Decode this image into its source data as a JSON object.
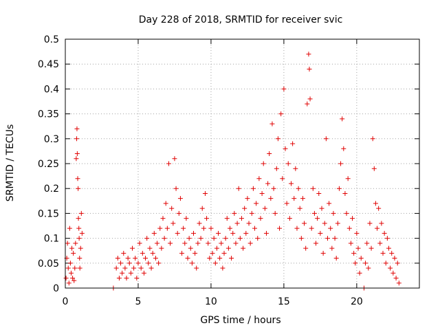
{
  "chart_data": {
    "type": "scatter",
    "title": "Day 228 of 2018, SRMTID for receiver svic",
    "xlabel": "GPS time / hours",
    "ylabel": "SRMTID / TECUs",
    "xlim": [
      0,
      24.3
    ],
    "ylim": [
      0,
      0.5
    ],
    "grid": true,
    "marker": "+",
    "color": "#e00000",
    "xticks": [
      0,
      5,
      10,
      15,
      20
    ],
    "xtick_labels": [
      "0",
      "5",
      "10",
      "15",
      "20"
    ],
    "yticks": [
      0,
      0.05,
      0.1,
      0.15,
      0.2,
      0.25,
      0.3,
      0.35,
      0.4,
      0.45,
      0.5
    ],
    "ytick_labels": [
      "0",
      "0.05",
      "0.1",
      "0.15",
      "0.2",
      "0.25",
      "0.3",
      "0.35",
      "0.4",
      "0.45",
      "0.5"
    ],
    "series": [
      {
        "name": "SRMTID",
        "points": [
          [
            0.05,
            0.02
          ],
          [
            0.1,
            0.06
          ],
          [
            0.15,
            0.09
          ],
          [
            0.2,
            0.04
          ],
          [
            0.25,
            0.01
          ],
          [
            0.3,
            0.12
          ],
          [
            0.35,
            0.05
          ],
          [
            0.4,
            0.03
          ],
          [
            0.45,
            0.08
          ],
          [
            0.5,
            0.02
          ],
          [
            0.55,
            0.07
          ],
          [
            0.6,
            0.015
          ],
          [
            0.65,
            0.04
          ],
          [
            0.7,
            0.09
          ],
          [
            0.75,
            0.26
          ],
          [
            0.78,
            0.3
          ],
          [
            0.8,
            0.32
          ],
          [
            0.82,
            0.27
          ],
          [
            0.85,
            0.22
          ],
          [
            0.88,
            0.2
          ],
          [
            0.9,
            0.14
          ],
          [
            0.93,
            0.12
          ],
          [
            0.95,
            0.1
          ],
          [
            0.98,
            0.06
          ],
          [
            1.0,
            0.04
          ],
          [
            1.05,
            0.08
          ],
          [
            1.1,
            0.15
          ],
          [
            1.15,
            0.11
          ],
          [
            3.3,
            0.0
          ],
          [
            3.5,
            0.04
          ],
          [
            3.6,
            0.06
          ],
          [
            3.7,
            0.02
          ],
          [
            3.8,
            0.05
          ],
          [
            3.9,
            0.03
          ],
          [
            4.0,
            0.07
          ],
          [
            4.1,
            0.04
          ],
          [
            4.2,
            0.02
          ],
          [
            4.3,
            0.06
          ],
          [
            4.4,
            0.05
          ],
          [
            4.5,
            0.03
          ],
          [
            4.6,
            0.08
          ],
          [
            4.7,
            0.04
          ],
          [
            4.8,
            0.06
          ],
          [
            4.9,
            0.02
          ],
          [
            5.0,
            0.05
          ],
          [
            5.1,
            0.09
          ],
          [
            5.2,
            0.04
          ],
          [
            5.3,
            0.07
          ],
          [
            5.4,
            0.03
          ],
          [
            5.5,
            0.06
          ],
          [
            5.6,
            0.1
          ],
          [
            5.7,
            0.05
          ],
          [
            5.8,
            0.08
          ],
          [
            5.9,
            0.04
          ],
          [
            6.0,
            0.07
          ],
          [
            6.1,
            0.11
          ],
          [
            6.2,
            0.06
          ],
          [
            6.3,
            0.09
          ],
          [
            6.4,
            0.05
          ],
          [
            6.5,
            0.12
          ],
          [
            6.6,
            0.08
          ],
          [
            6.7,
            0.14
          ],
          [
            6.8,
            0.1
          ],
          [
            6.9,
            0.17
          ],
          [
            7.0,
            0.12
          ],
          [
            7.1,
            0.25
          ],
          [
            7.2,
            0.09
          ],
          [
            7.3,
            0.16
          ],
          [
            7.4,
            0.13
          ],
          [
            7.5,
            0.26
          ],
          [
            7.6,
            0.2
          ],
          [
            7.7,
            0.11
          ],
          [
            7.8,
            0.15
          ],
          [
            7.9,
            0.18
          ],
          [
            8.0,
            0.07
          ],
          [
            8.1,
            0.12
          ],
          [
            8.2,
            0.09
          ],
          [
            8.3,
            0.14
          ],
          [
            8.4,
            0.06
          ],
          [
            8.5,
            0.1
          ],
          [
            8.6,
            0.08
          ],
          [
            8.7,
            0.05
          ],
          [
            8.8,
            0.11
          ],
          [
            8.9,
            0.07
          ],
          [
            9.0,
            0.04
          ],
          [
            9.1,
            0.09
          ],
          [
            9.2,
            0.13
          ],
          [
            9.3,
            0.1
          ],
          [
            9.4,
            0.16
          ],
          [
            9.5,
            0.12
          ],
          [
            9.6,
            0.19
          ],
          [
            9.7,
            0.14
          ],
          [
            9.8,
            0.09
          ],
          [
            9.9,
            0.06
          ],
          [
            10.0,
            0.12
          ],
          [
            10.1,
            0.07
          ],
          [
            10.2,
            0.1
          ],
          [
            10.3,
            0.05
          ],
          [
            10.4,
            0.08
          ],
          [
            10.5,
            0.11
          ],
          [
            10.6,
            0.06
          ],
          [
            10.7,
            0.09
          ],
          [
            10.8,
            0.04
          ],
          [
            10.9,
            0.07
          ],
          [
            11.0,
            0.1
          ],
          [
            11.1,
            0.14
          ],
          [
            11.2,
            0.08
          ],
          [
            11.3,
            0.12
          ],
          [
            11.4,
            0.06
          ],
          [
            11.5,
            0.11
          ],
          [
            11.6,
            0.15
          ],
          [
            11.7,
            0.09
          ],
          [
            11.8,
            0.13
          ],
          [
            11.9,
            0.2
          ],
          [
            12.0,
            0.1
          ],
          [
            12.1,
            0.14
          ],
          [
            12.2,
            0.08
          ],
          [
            12.3,
            0.16
          ],
          [
            12.4,
            0.11
          ],
          [
            12.5,
            0.18
          ],
          [
            12.6,
            0.13
          ],
          [
            12.7,
            0.09
          ],
          [
            12.8,
            0.15
          ],
          [
            12.9,
            0.2
          ],
          [
            13.0,
            0.12
          ],
          [
            13.1,
            0.17
          ],
          [
            13.2,
            0.1
          ],
          [
            13.3,
            0.22
          ],
          [
            13.4,
            0.14
          ],
          [
            13.5,
            0.19
          ],
          [
            13.6,
            0.25
          ],
          [
            13.7,
            0.16
          ],
          [
            13.8,
            0.11
          ],
          [
            13.9,
            0.21
          ],
          [
            14.0,
            0.27
          ],
          [
            14.1,
            0.18
          ],
          [
            14.2,
            0.33
          ],
          [
            14.3,
            0.2
          ],
          [
            14.4,
            0.15
          ],
          [
            14.5,
            0.24
          ],
          [
            14.6,
            0.3
          ],
          [
            14.7,
            0.12
          ],
          [
            14.8,
            0.35
          ],
          [
            14.9,
            0.22
          ],
          [
            15.0,
            0.4
          ],
          [
            15.1,
            0.28
          ],
          [
            15.2,
            0.17
          ],
          [
            15.3,
            0.25
          ],
          [
            15.4,
            0.14
          ],
          [
            15.5,
            0.21
          ],
          [
            15.6,
            0.29
          ],
          [
            15.7,
            0.18
          ],
          [
            15.8,
            0.24
          ],
          [
            15.9,
            0.12
          ],
          [
            16.0,
            0.2
          ],
          [
            16.1,
            0.16
          ],
          [
            16.2,
            0.1
          ],
          [
            16.3,
            0.18
          ],
          [
            16.4,
            0.13
          ],
          [
            16.5,
            0.08
          ],
          [
            16.6,
            0.37
          ],
          [
            16.7,
            0.47
          ],
          [
            16.75,
            0.44
          ],
          [
            16.8,
            0.38
          ],
          [
            16.9,
            0.12
          ],
          [
            17.0,
            0.2
          ],
          [
            17.1,
            0.15
          ],
          [
            17.2,
            0.09
          ],
          [
            17.3,
            0.14
          ],
          [
            17.4,
            0.19
          ],
          [
            17.5,
            0.11
          ],
          [
            17.6,
            0.16
          ],
          [
            17.7,
            0.07
          ],
          [
            17.8,
            0.13
          ],
          [
            17.9,
            0.3
          ],
          [
            18.0,
            0.1
          ],
          [
            18.1,
            0.17
          ],
          [
            18.2,
            0.12
          ],
          [
            18.3,
            0.08
          ],
          [
            18.4,
            0.15
          ],
          [
            18.5,
            0.1
          ],
          [
            18.6,
            0.06
          ],
          [
            18.7,
            0.13
          ],
          [
            18.8,
            0.2
          ],
          [
            18.9,
            0.25
          ],
          [
            19.0,
            0.34
          ],
          [
            19.1,
            0.28
          ],
          [
            19.2,
            0.19
          ],
          [
            19.3,
            0.15
          ],
          [
            19.4,
            0.22
          ],
          [
            19.5,
            0.12
          ],
          [
            19.6,
            0.09
          ],
          [
            19.7,
            0.14
          ],
          [
            19.8,
            0.07
          ],
          [
            19.9,
            0.05
          ],
          [
            20.0,
            0.11
          ],
          [
            20.1,
            0.08
          ],
          [
            20.2,
            0.03
          ],
          [
            20.3,
            0.06
          ],
          [
            20.5,
            0.0
          ],
          [
            20.6,
            0.05
          ],
          [
            20.7,
            0.09
          ],
          [
            20.8,
            0.04
          ],
          [
            20.9,
            0.13
          ],
          [
            21.0,
            0.08
          ],
          [
            21.1,
            0.3
          ],
          [
            21.2,
            0.24
          ],
          [
            21.3,
            0.17
          ],
          [
            21.4,
            0.12
          ],
          [
            21.5,
            0.16
          ],
          [
            21.6,
            0.09
          ],
          [
            21.7,
            0.13
          ],
          [
            21.8,
            0.07
          ],
          [
            21.9,
            0.11
          ],
          [
            22.0,
            0.05
          ],
          [
            22.1,
            0.1
          ],
          [
            22.2,
            0.08
          ],
          [
            22.3,
            0.04
          ],
          [
            22.4,
            0.07
          ],
          [
            22.5,
            0.03
          ],
          [
            22.6,
            0.06
          ],
          [
            22.7,
            0.02
          ],
          [
            22.8,
            0.05
          ],
          [
            22.9,
            0.01
          ]
        ]
      }
    ]
  }
}
